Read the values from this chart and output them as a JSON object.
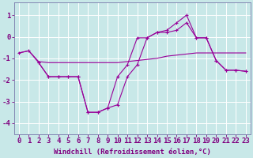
{
  "background_color": "#c8e8e8",
  "grid_color": "#ffffff",
  "line_color": "#990099",
  "marker_color": "#990099",
  "ylabel_ticks": [
    1,
    0,
    -1,
    -2,
    -3,
    -4
  ],
  "xlabel": "Windchill (Refroidissement éolien,°C)",
  "xlabel_fontsize": 6.5,
  "tick_fontsize": 6.5,
  "xlim": [
    -0.5,
    23.5
  ],
  "ylim": [
    -4.5,
    1.6
  ],
  "xtick_labels": [
    "0",
    "1",
    "2",
    "3",
    "4",
    "5",
    "6",
    "7",
    "8",
    "9",
    "10",
    "11",
    "12",
    "13",
    "14",
    "15",
    "16",
    "17",
    "18",
    "19",
    "20",
    "21",
    "22",
    "23"
  ],
  "series": [
    {
      "x": [
        0,
        1,
        2,
        3,
        4,
        5,
        6,
        7,
        8,
        9,
        10,
        11,
        12,
        13,
        14,
        15,
        16,
        17,
        18,
        19,
        20,
        21,
        22,
        23
      ],
      "y": [
        -0.75,
        -0.65,
        -1.2,
        -1.85,
        -1.85,
        -1.85,
        -1.85,
        -3.5,
        -3.5,
        -3.3,
        -1.85,
        -1.3,
        -0.05,
        -0.05,
        0.2,
        0.2,
        0.3,
        0.65,
        -0.05,
        -0.05,
        -1.1,
        -1.55,
        -1.55,
        -1.6
      ],
      "has_markers": true
    },
    {
      "x": [
        0,
        1,
        2,
        3,
        4,
        5,
        6,
        7,
        8,
        9,
        10,
        11,
        12,
        13,
        14,
        15,
        16,
        17,
        18,
        19,
        20,
        21,
        22,
        23
      ],
      "y": [
        -0.75,
        -0.65,
        -1.15,
        -1.2,
        -1.2,
        -1.2,
        -1.2,
        -1.2,
        -1.2,
        -1.2,
        -1.2,
        -1.15,
        -1.1,
        -1.05,
        -1.0,
        -0.9,
        -0.85,
        -0.8,
        -0.75,
        -0.75,
        -0.75,
        -0.75,
        -0.75,
        -0.75
      ],
      "has_markers": false
    },
    {
      "x": [
        2,
        3,
        4,
        5,
        6,
        7,
        8,
        9,
        10,
        11,
        12,
        13,
        14,
        15,
        16,
        17,
        18,
        19,
        20,
        21,
        22,
        23
      ],
      "y": [
        -1.2,
        -1.85,
        -1.85,
        -1.85,
        -1.85,
        -3.5,
        -3.5,
        -3.3,
        -3.15,
        -1.85,
        -1.3,
        -0.05,
        0.2,
        0.3,
        0.65,
        1.0,
        -0.05,
        -0.05,
        -1.1,
        -1.55,
        -1.55,
        -1.6
      ],
      "has_markers": true
    }
  ]
}
